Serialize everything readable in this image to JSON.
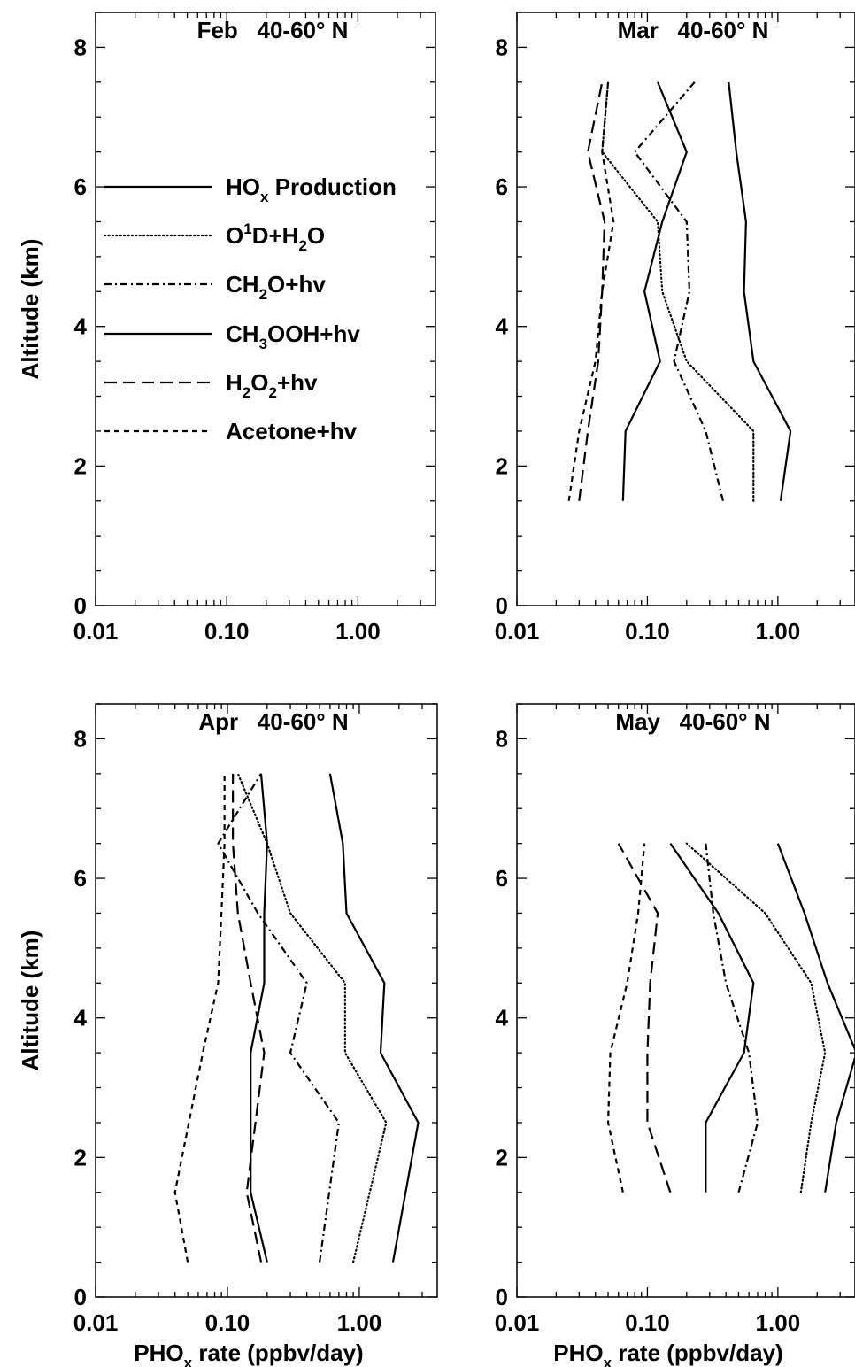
{
  "figure": {
    "ylabel": "Altitude (km)",
    "xlabel_main": "PHO",
    "xlabel_sub": "x",
    "xlabel_rest": " rate (ppbv/day)"
  },
  "legend": [
    {
      "series": "hox",
      "parts": [
        {
          "t": "HO"
        },
        {
          "t": "x",
          "sub": true
        },
        {
          "t": " Production"
        }
      ]
    },
    {
      "series": "o1d",
      "parts": [
        {
          "t": "O"
        },
        {
          "t": "1",
          "sup": true
        },
        {
          "t": "D+H"
        },
        {
          "t": "2",
          "sub": true
        },
        {
          "t": "O"
        }
      ]
    },
    {
      "series": "ch2o",
      "parts": [
        {
          "t": "CH"
        },
        {
          "t": "2",
          "sub": true
        },
        {
          "t": "O+hv"
        }
      ]
    },
    {
      "series": "ch3ooh",
      "parts": [
        {
          "t": "CH"
        },
        {
          "t": "3",
          "sub": true
        },
        {
          "t": "OOH+hv"
        }
      ]
    },
    {
      "series": "h2o2",
      "parts": [
        {
          "t": "H"
        },
        {
          "t": "2",
          "sub": true
        },
        {
          "t": "O"
        },
        {
          "t": "2",
          "sub": true
        },
        {
          "t": "+hv"
        }
      ]
    },
    {
      "series": "acetone",
      "parts": [
        {
          "t": "Acetone+hv"
        }
      ]
    }
  ],
  "line_styles": {
    "hox": "solid",
    "o1d": "dotted",
    "ch2o": "dash-dot",
    "ch3ooh": "solid",
    "h2o2": "long-dash",
    "acetone": "short-dash"
  },
  "chart_data": [
    {
      "type": "line",
      "title": "Feb   40-60° N",
      "xscale": "log",
      "xlim": [
        0.01,
        3.9
      ],
      "ylim": [
        0,
        8.5
      ],
      "xticks": [
        {
          "v": 0.01,
          "label": "0.01"
        },
        {
          "v": 0.1,
          "label": "0.10"
        },
        {
          "v": 1,
          "label": "1.00"
        }
      ],
      "yticks": [
        0,
        2,
        4,
        6,
        8
      ],
      "xlabel": "",
      "ylabel": "Altitude (km)",
      "legend": true,
      "series": []
    },
    {
      "type": "line",
      "title": "Mar   40-60° N",
      "xscale": "log",
      "xlim": [
        0.01,
        3.9
      ],
      "ylim": [
        0,
        8.5
      ],
      "xticks": [
        {
          "v": 0.01,
          "label": "0.01"
        },
        {
          "v": 0.1,
          "label": "0.10"
        },
        {
          "v": 1,
          "label": "1.00"
        }
      ],
      "yticks": [
        0,
        2,
        4,
        6,
        8
      ],
      "xlabel": "",
      "ylabel": "",
      "legend": false,
      "series": [
        {
          "key": "hox",
          "x": [
            1.05,
            1.25,
            0.65,
            0.55,
            0.57,
            0.48,
            0.42
          ],
          "y": [
            1.5,
            2.5,
            3.5,
            4.5,
            5.5,
            6.5,
            7.5
          ]
        },
        {
          "key": "o1d",
          "x": [
            0.65,
            0.65,
            0.2,
            0.13,
            0.12,
            0.045,
            0.05
          ],
          "y": [
            1.5,
            2.5,
            3.5,
            4.5,
            5.5,
            6.5,
            7.5
          ]
        },
        {
          "key": "ch2o",
          "x": [
            0.38,
            0.28,
            0.16,
            0.21,
            0.2,
            0.08,
            0.23
          ],
          "y": [
            1.5,
            2.5,
            3.5,
            4.5,
            5.5,
            6.5,
            7.5
          ]
        },
        {
          "key": "ch3ooh",
          "x": [
            0.065,
            0.068,
            0.125,
            0.095,
            0.13,
            0.2,
            0.12
          ],
          "y": [
            1.5,
            2.5,
            3.5,
            4.5,
            5.5,
            6.5,
            7.5
          ]
        },
        {
          "key": "h2o2",
          "x": [
            0.03,
            0.035,
            0.042,
            0.045,
            0.047,
            0.035,
            0.045
          ],
          "y": [
            1.5,
            2.5,
            3.5,
            4.5,
            5.5,
            6.5,
            7.5
          ]
        },
        {
          "key": "acetone",
          "x": [
            0.025,
            0.03,
            0.04,
            0.045,
            0.055,
            0.045,
            0.05
          ],
          "y": [
            1.5,
            2.5,
            3.5,
            4.5,
            5.5,
            6.5,
            7.5
          ]
        }
      ]
    },
    {
      "type": "line",
      "title": "Apr   40-60° N",
      "xscale": "log",
      "xlim": [
        0.01,
        3.9
      ],
      "ylim": [
        0,
        8.5
      ],
      "xticks": [
        {
          "v": 0.01,
          "label": "0.01"
        },
        {
          "v": 0.1,
          "label": "0.10"
        },
        {
          "v": 1,
          "label": "1.00"
        }
      ],
      "yticks": [
        0,
        2,
        4,
        6,
        8
      ],
      "xlabel": "PHOx rate (ppbv/day)",
      "ylabel": "Altitude (km)",
      "legend": false,
      "series": [
        {
          "key": "hox",
          "x": [
            1.8,
            2.8,
            1.45,
            1.55,
            0.8,
            0.75,
            0.6
          ],
          "y": [
            0.5,
            2.5,
            3.5,
            4.5,
            5.5,
            6.5,
            7.5
          ]
        },
        {
          "key": "o1d",
          "x": [
            0.9,
            1.6,
            0.78,
            0.78,
            0.3,
            0.2,
            0.12
          ],
          "y": [
            0.5,
            2.5,
            3.5,
            4.5,
            5.5,
            6.5,
            7.5
          ]
        },
        {
          "key": "ch2o",
          "x": [
            0.5,
            0.7,
            0.3,
            0.4,
            0.17,
            0.085,
            0.18
          ],
          "y": [
            0.5,
            2.5,
            3.5,
            4.5,
            5.5,
            6.5,
            7.5
          ]
        },
        {
          "key": "ch3ooh",
          "x": [
            0.2,
            0.15,
            0.15,
            0.19,
            0.19,
            0.2,
            0.18
          ],
          "y": [
            0.5,
            1.5,
            3.5,
            4.5,
            5.5,
            6.5,
            7.5
          ]
        },
        {
          "key": "h2o2",
          "x": [
            0.18,
            0.14,
            0.19,
            0.15,
            0.12,
            0.11,
            0.11
          ],
          "y": [
            0.5,
            1.5,
            3.5,
            4.5,
            5.5,
            6.5,
            7.5
          ]
        },
        {
          "key": "acetone",
          "x": [
            0.05,
            0.04,
            0.065,
            0.085,
            0.09,
            0.095,
            0.095
          ],
          "y": [
            0.5,
            1.5,
            3.5,
            4.5,
            5.5,
            6.5,
            7.5
          ]
        }
      ]
    },
    {
      "type": "line",
      "title": "May   40-60° N",
      "xscale": "log",
      "xlim": [
        0.01,
        3.9
      ],
      "ylim": [
        0,
        8.5
      ],
      "xticks": [
        {
          "v": 0.01,
          "label": "0.01"
        },
        {
          "v": 0.1,
          "label": "0.10"
        },
        {
          "v": 1,
          "label": "1.00"
        }
      ],
      "yticks": [
        0,
        2,
        4,
        6,
        8
      ],
      "xlabel": "PHOx rate (ppbv/day)",
      "ylabel": "",
      "legend": false,
      "series": [
        {
          "key": "hox",
          "x": [
            2.3,
            2.8,
            4.0,
            2.4,
            1.6,
            1.0
          ],
          "y": [
            1.5,
            2.5,
            3.5,
            4.5,
            5.5,
            6.5
          ]
        },
        {
          "key": "o1d",
          "x": [
            1.5,
            1.8,
            2.3,
            1.8,
            0.8,
            0.2
          ],
          "y": [
            1.5,
            2.5,
            3.5,
            4.5,
            5.5,
            6.5
          ]
        },
        {
          "key": "ch2o",
          "x": [
            0.5,
            0.7,
            0.6,
            0.4,
            0.32,
            0.28
          ],
          "y": [
            1.5,
            2.5,
            3.5,
            4.5,
            5.5,
            6.5
          ]
        },
        {
          "key": "ch3ooh",
          "x": [
            0.28,
            0.28,
            0.55,
            0.65,
            0.35,
            0.15
          ],
          "y": [
            1.5,
            2.5,
            3.5,
            4.5,
            5.5,
            6.5
          ]
        },
        {
          "key": "h2o2",
          "x": [
            0.15,
            0.1,
            0.1,
            0.105,
            0.12,
            0.06
          ],
          "y": [
            1.5,
            2.5,
            3.5,
            4.5,
            5.5,
            6.5
          ]
        },
        {
          "key": "acetone",
          "x": [
            0.065,
            0.05,
            0.052,
            0.07,
            0.085,
            0.095
          ],
          "y": [
            1.5,
            2.5,
            3.5,
            4.5,
            5.5,
            6.5
          ]
        }
      ]
    }
  ]
}
